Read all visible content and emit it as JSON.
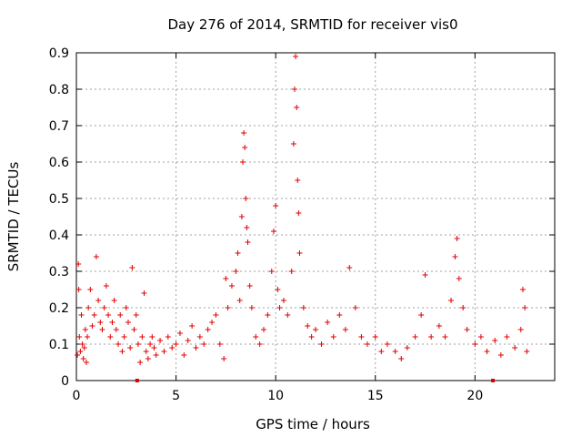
{
  "chart_data": {
    "type": "scatter",
    "title": "Day 276 of 2014, SRMTID for receiver vis0",
    "xlabel": "GPS time / hours",
    "ylabel": "SRMTID / TECUs",
    "xlim": [
      0,
      24
    ],
    "ylim": [
      0,
      0.9
    ],
    "xticks": [
      0,
      5,
      10,
      15,
      20
    ],
    "yticks": [
      0,
      0.1,
      0.2,
      0.3,
      0.4,
      0.5,
      0.6,
      0.7,
      0.8,
      0.9
    ],
    "grid": true,
    "marker": "+",
    "color": "#e00000",
    "series": [
      {
        "name": "SRMTID",
        "points": [
          [
            0.05,
            0.07
          ],
          [
            0.1,
            0.32
          ],
          [
            0.12,
            0.25
          ],
          [
            0.15,
            0.12
          ],
          [
            0.2,
            0.08
          ],
          [
            0.25,
            0.18
          ],
          [
            0.3,
            0.1
          ],
          [
            0.35,
            0.06
          ],
          [
            0.4,
            0.09
          ],
          [
            0.45,
            0.14
          ],
          [
            0.5,
            0.05
          ],
          [
            0.55,
            0.12
          ],
          [
            0.6,
            0.2
          ],
          [
            0.7,
            0.25
          ],
          [
            0.8,
            0.15
          ],
          [
            0.9,
            0.18
          ],
          [
            1.0,
            0.34
          ],
          [
            1.1,
            0.22
          ],
          [
            1.2,
            0.16
          ],
          [
            1.3,
            0.14
          ],
          [
            1.4,
            0.2
          ],
          [
            1.5,
            0.26
          ],
          [
            1.6,
            0.18
          ],
          [
            1.7,
            0.12
          ],
          [
            1.8,
            0.16
          ],
          [
            1.9,
            0.22
          ],
          [
            2.0,
            0.14
          ],
          [
            2.1,
            0.1
          ],
          [
            2.2,
            0.18
          ],
          [
            2.3,
            0.08
          ],
          [
            2.4,
            0.12
          ],
          [
            2.5,
            0.2
          ],
          [
            2.6,
            0.16
          ],
          [
            2.7,
            0.09
          ],
          [
            2.8,
            0.31
          ],
          [
            2.9,
            0.14
          ],
          [
            3.0,
            0.18
          ],
          [
            3.1,
            0.1
          ],
          [
            3.2,
            0.05
          ],
          [
            3.3,
            0.12
          ],
          [
            3.4,
            0.24
          ],
          [
            3.5,
            0.08
          ],
          [
            3.6,
            0.06
          ],
          [
            3.7,
            0.1
          ],
          [
            3.8,
            0.12
          ],
          [
            3.9,
            0.09
          ],
          [
            4.0,
            0.07
          ],
          [
            4.2,
            0.11
          ],
          [
            4.4,
            0.08
          ],
          [
            4.6,
            0.12
          ],
          [
            4.8,
            0.09
          ],
          [
            5.0,
            0.1
          ],
          [
            5.2,
            0.13
          ],
          [
            5.4,
            0.07
          ],
          [
            5.6,
            0.11
          ],
          [
            5.8,
            0.15
          ],
          [
            6.0,
            0.09
          ],
          [
            6.2,
            0.12
          ],
          [
            6.4,
            0.1
          ],
          [
            6.6,
            0.14
          ],
          [
            6.8,
            0.16
          ],
          [
            7.0,
            0.18
          ],
          [
            7.2,
            0.1
          ],
          [
            7.4,
            0.06
          ],
          [
            7.5,
            0.28
          ],
          [
            7.6,
            0.2
          ],
          [
            7.8,
            0.26
          ],
          [
            8.0,
            0.3
          ],
          [
            8.1,
            0.35
          ],
          [
            8.2,
            0.22
          ],
          [
            8.3,
            0.45
          ],
          [
            8.35,
            0.6
          ],
          [
            8.4,
            0.68
          ],
          [
            8.45,
            0.64
          ],
          [
            8.5,
            0.5
          ],
          [
            8.55,
            0.42
          ],
          [
            8.6,
            0.38
          ],
          [
            8.7,
            0.26
          ],
          [
            8.8,
            0.2
          ],
          [
            9.0,
            0.12
          ],
          [
            9.2,
            0.1
          ],
          [
            9.4,
            0.14
          ],
          [
            9.6,
            0.18
          ],
          [
            9.8,
            0.3
          ],
          [
            9.9,
            0.41
          ],
          [
            10.0,
            0.48
          ],
          [
            10.1,
            0.25
          ],
          [
            10.2,
            0.2
          ],
          [
            10.4,
            0.22
          ],
          [
            10.6,
            0.18
          ],
          [
            10.8,
            0.3
          ],
          [
            10.9,
            0.65
          ],
          [
            10.95,
            0.8
          ],
          [
            11.0,
            0.89
          ],
          [
            11.05,
            0.75
          ],
          [
            11.1,
            0.55
          ],
          [
            11.15,
            0.46
          ],
          [
            11.2,
            0.35
          ],
          [
            11.4,
            0.2
          ],
          [
            11.6,
            0.15
          ],
          [
            11.8,
            0.12
          ],
          [
            12.0,
            0.14
          ],
          [
            12.3,
            0.1
          ],
          [
            12.6,
            0.16
          ],
          [
            12.9,
            0.12
          ],
          [
            13.2,
            0.18
          ],
          [
            13.5,
            0.14
          ],
          [
            13.7,
            0.31
          ],
          [
            14.0,
            0.2
          ],
          [
            14.3,
            0.12
          ],
          [
            14.6,
            0.1
          ],
          [
            15.0,
            0.12
          ],
          [
            15.3,
            0.08
          ],
          [
            15.6,
            0.1
          ],
          [
            16.0,
            0.08
          ],
          [
            16.3,
            0.06
          ],
          [
            16.6,
            0.09
          ],
          [
            17.0,
            0.12
          ],
          [
            17.3,
            0.18
          ],
          [
            17.5,
            0.29
          ],
          [
            17.8,
            0.12
          ],
          [
            18.2,
            0.15
          ],
          [
            18.5,
            0.12
          ],
          [
            18.8,
            0.22
          ],
          [
            19.0,
            0.34
          ],
          [
            19.1,
            0.39
          ],
          [
            19.2,
            0.28
          ],
          [
            19.4,
            0.2
          ],
          [
            19.6,
            0.14
          ],
          [
            20.0,
            0.1
          ],
          [
            20.3,
            0.12
          ],
          [
            20.6,
            0.08
          ],
          [
            21.0,
            0.11
          ],
          [
            21.3,
            0.07
          ],
          [
            21.6,
            0.12
          ],
          [
            22.0,
            0.09
          ],
          [
            22.3,
            0.14
          ],
          [
            22.4,
            0.25
          ],
          [
            22.5,
            0.2
          ],
          [
            22.6,
            0.08
          ]
        ]
      }
    ],
    "extra_marks": [
      [
        3.05,
        0.0
      ],
      [
        20.9,
        0.0
      ]
    ]
  }
}
